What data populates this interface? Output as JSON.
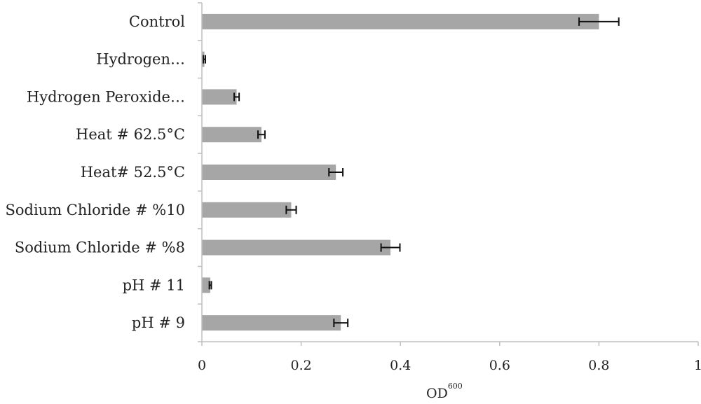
{
  "chart_data": {
    "type": "bar",
    "orientation": "horizontal",
    "categories": [
      "Control",
      "Hydrogen…",
      "Hydrogen Peroxide…",
      "Heat # 62.5°C",
      "Heat# 52.5°C",
      "Sodium Chloride # %10",
      "Sodium Chloride # %8",
      "pH # 11",
      "pH # 9"
    ],
    "values": [
      0.8,
      0.005,
      0.07,
      0.12,
      0.27,
      0.18,
      0.38,
      0.017,
      0.28
    ],
    "errors": [
      0.04,
      0.002,
      0.005,
      0.007,
      0.014,
      0.01,
      0.019,
      0.002,
      0.014
    ],
    "xlim": [
      0,
      1
    ],
    "xticks": [
      "0",
      "0.2",
      "0.4",
      "0.6",
      "0.8",
      "1"
    ],
    "xticks_values": [
      0,
      0.2,
      0.4,
      0.6,
      0.8,
      1
    ],
    "xlabel": "OD",
    "xlabel_superscript": "600",
    "ylabel": "",
    "title": "",
    "grid": false,
    "legend": "none",
    "colors": {
      "bar": "#a6a6a6",
      "axis": "#bfbfbf",
      "error": "#111111"
    }
  }
}
